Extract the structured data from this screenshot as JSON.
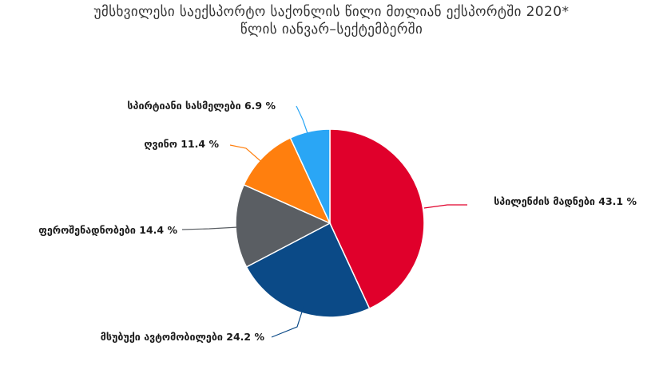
{
  "chart_data": {
    "type": "pie",
    "title_lines": [
      "უმსხვილესი საექსპორტო საქონლის წილი მთლიან ექსპორტში 2020*",
      "წლის იანვარ–სექტემბერში"
    ],
    "unit": "%",
    "slices": [
      {
        "label": "სპილენძის მადნები",
        "value": 43.1,
        "color": "#e0002b"
      },
      {
        "label": "მსუბუქი ავტომობილები",
        "value": 24.2,
        "color": "#0b4a87"
      },
      {
        "label": "ფეროშენადნობები",
        "value": 14.4,
        "color": "#5a5e63"
      },
      {
        "label": "ღვინო",
        "value": 11.4,
        "color": "#ff7f0e"
      },
      {
        "label": "სპირტიანი სასმელები",
        "value": 6.9,
        "color": "#2aa6f5"
      }
    ]
  }
}
